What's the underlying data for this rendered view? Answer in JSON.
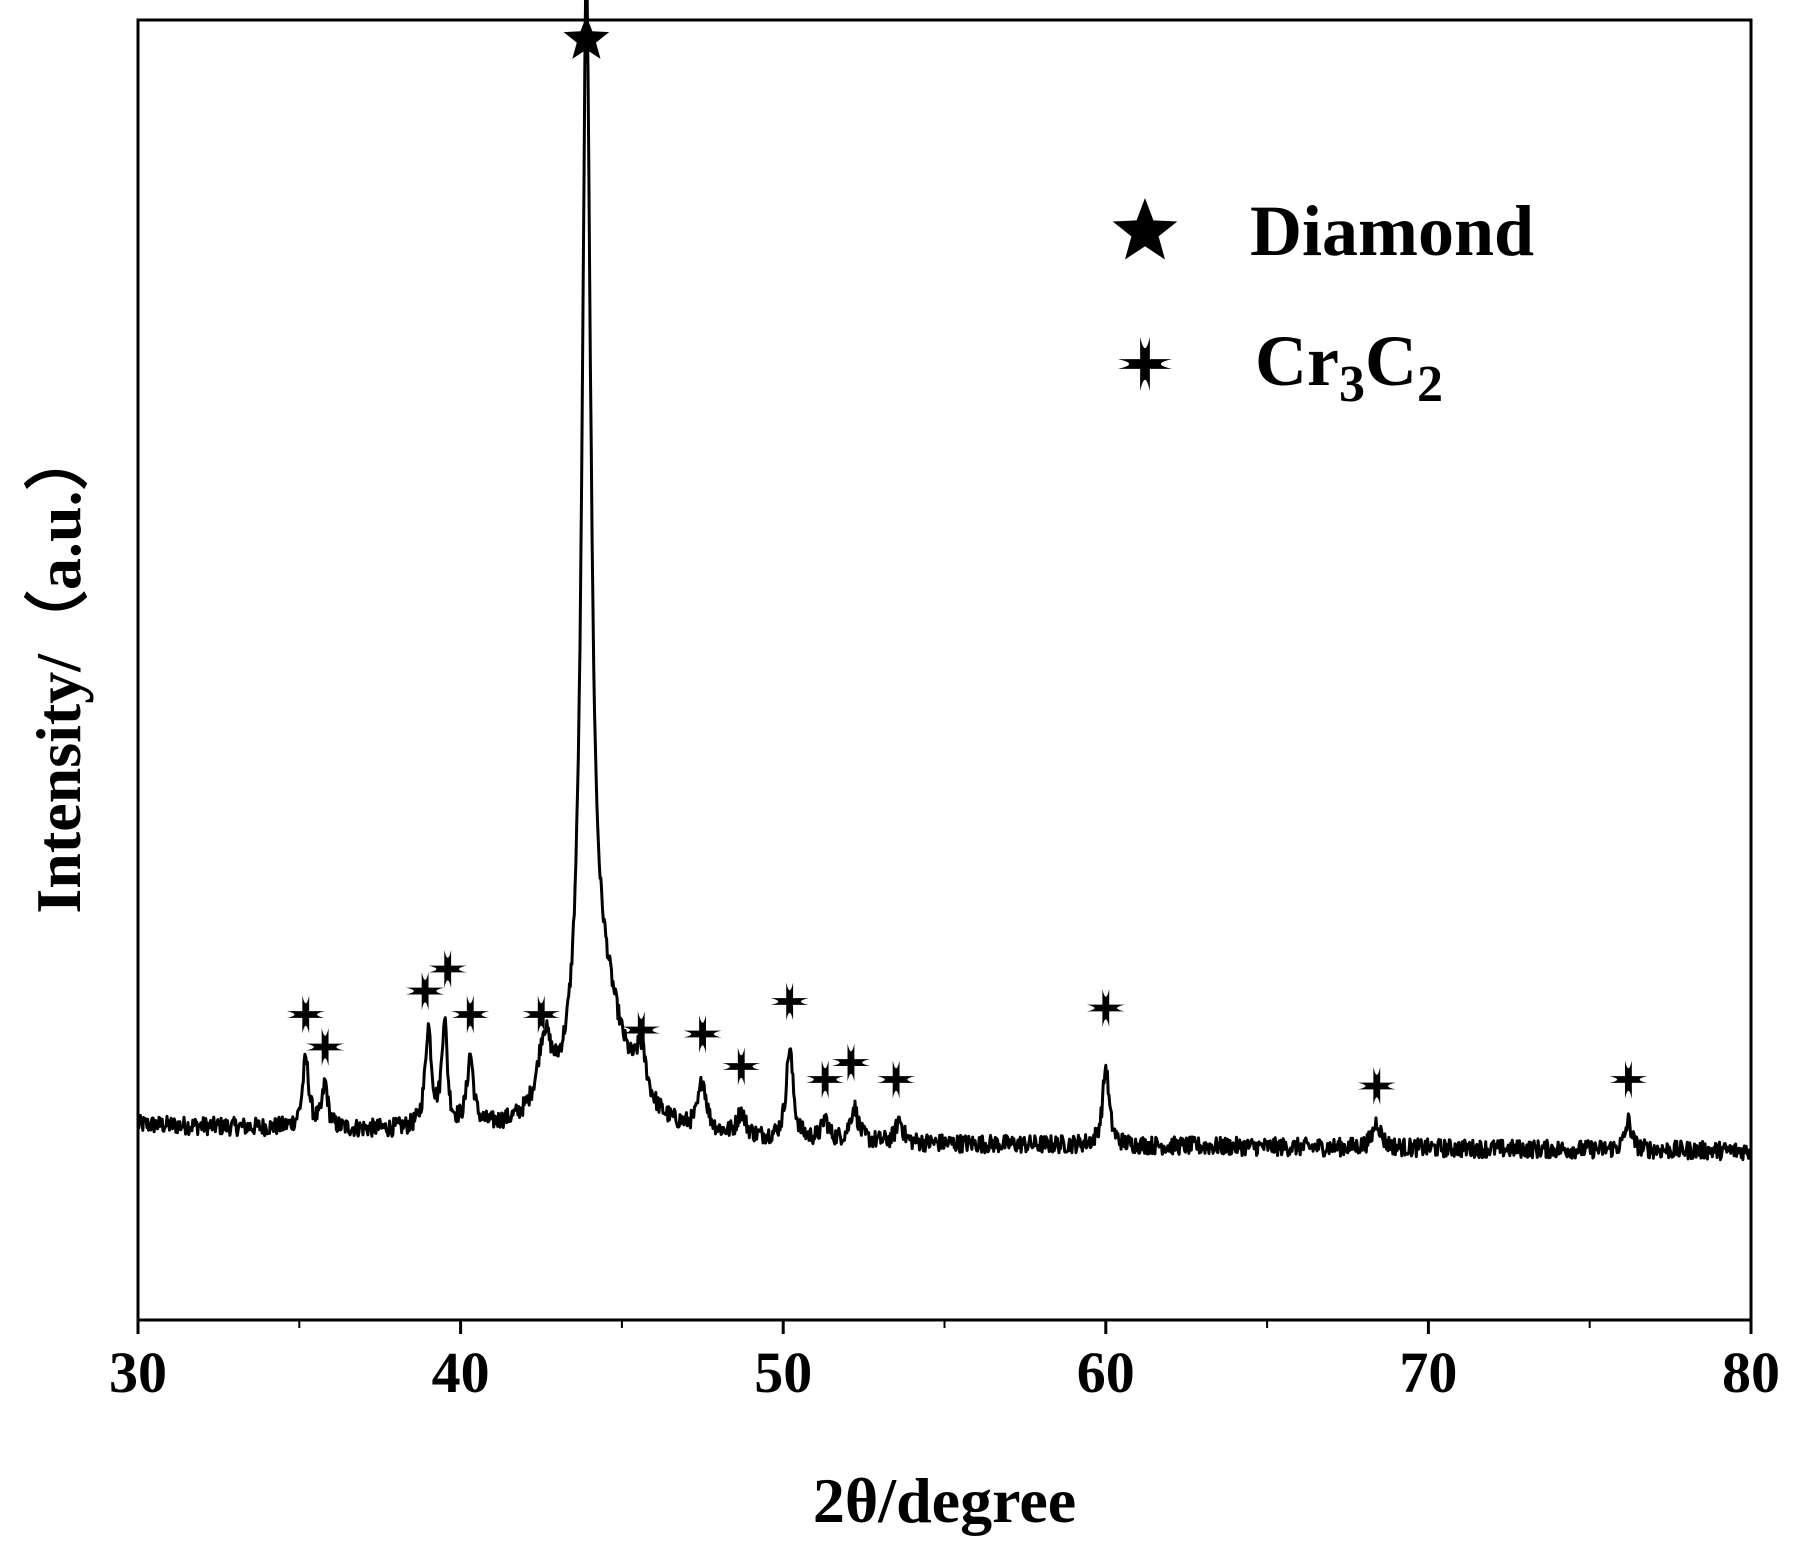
{
  "chart_data": {
    "type": "line",
    "title": "",
    "xlabel": "2θ/degree",
    "ylabel": "Intensity/（a.u.）",
    "xlim": [
      30,
      80
    ],
    "ylim": [
      0,
      100
    ],
    "xticks": [
      30,
      40,
      50,
      60,
      70,
      80
    ],
    "xtick_labels": [
      "30",
      "40",
      "50",
      "60",
      "70",
      "80"
    ],
    "yticks_shown": false,
    "grid": false,
    "legend_position": "top-right",
    "legend": [
      {
        "marker": "star",
        "label": "Diamond"
      },
      {
        "marker": "plus",
        "label_main": "Cr",
        "label_sub1": "3",
        "label_mid": "C",
        "label_sub2": "2"
      }
    ],
    "series": [
      {
        "baseline": [
          [
            30,
            15.0
          ],
          [
            50,
            13.6
          ],
          [
            80,
            13.0
          ]
        ],
        "peaks": [
          {
            "x": 35.2,
            "height": 5.2,
            "width": 0.12
          },
          {
            "x": 35.8,
            "height": 3.4,
            "width": 0.1
          },
          {
            "x": 39.0,
            "height": 7.6,
            "width": 0.12
          },
          {
            "x": 39.5,
            "height": 8.2,
            "width": 0.1
          },
          {
            "x": 40.3,
            "height": 5.4,
            "width": 0.12
          },
          {
            "x": 42.6,
            "height": 5.5,
            "width": 0.25
          },
          {
            "x": 43.9,
            "height": 82.0,
            "width": 0.16
          },
          {
            "x": 44.4,
            "height": 10.0,
            "width": 0.8
          },
          {
            "x": 45.6,
            "height": 3.6,
            "width": 0.2
          },
          {
            "x": 47.5,
            "height": 3.8,
            "width": 0.15
          },
          {
            "x": 48.7,
            "height": 1.8,
            "width": 0.15
          },
          {
            "x": 50.2,
            "height": 7.0,
            "width": 0.13
          },
          {
            "x": 51.3,
            "height": 1.6,
            "width": 0.12
          },
          {
            "x": 52.2,
            "height": 2.6,
            "width": 0.15
          },
          {
            "x": 53.6,
            "height": 1.8,
            "width": 0.12
          },
          {
            "x": 60.0,
            "height": 6.0,
            "width": 0.12
          },
          {
            "x": 68.4,
            "height": 2.0,
            "width": 0.15
          },
          {
            "x": 76.2,
            "height": 2.2,
            "width": 0.12
          }
        ],
        "noise_amplitude": 0.7
      }
    ],
    "annotations": [
      {
        "marker": "star",
        "x": 43.9,
        "y": 98.5
      },
      {
        "marker": "plus",
        "x": 35.2,
        "y": 23.5
      },
      {
        "marker": "plus",
        "x": 35.8,
        "y": 21.0
      },
      {
        "marker": "plus",
        "x": 38.9,
        "y": 25.3
      },
      {
        "marker": "plus",
        "x": 39.6,
        "y": 27.0
      },
      {
        "marker": "plus",
        "x": 40.3,
        "y": 23.5
      },
      {
        "marker": "plus",
        "x": 42.5,
        "y": 23.5
      },
      {
        "marker": "plus",
        "x": 45.6,
        "y": 22.3
      },
      {
        "marker": "plus",
        "x": 47.5,
        "y": 22.0
      },
      {
        "marker": "plus",
        "x": 48.7,
        "y": 19.5
      },
      {
        "marker": "plus",
        "x": 50.2,
        "y": 24.5
      },
      {
        "marker": "plus",
        "x": 51.3,
        "y": 18.5
      },
      {
        "marker": "plus",
        "x": 52.1,
        "y": 19.8
      },
      {
        "marker": "plus",
        "x": 53.5,
        "y": 18.5
      },
      {
        "marker": "plus",
        "x": 60.0,
        "y": 24.0
      },
      {
        "marker": "plus",
        "x": 68.4,
        "y": 18.0
      },
      {
        "marker": "plus",
        "x": 76.2,
        "y": 18.5
      }
    ]
  }
}
